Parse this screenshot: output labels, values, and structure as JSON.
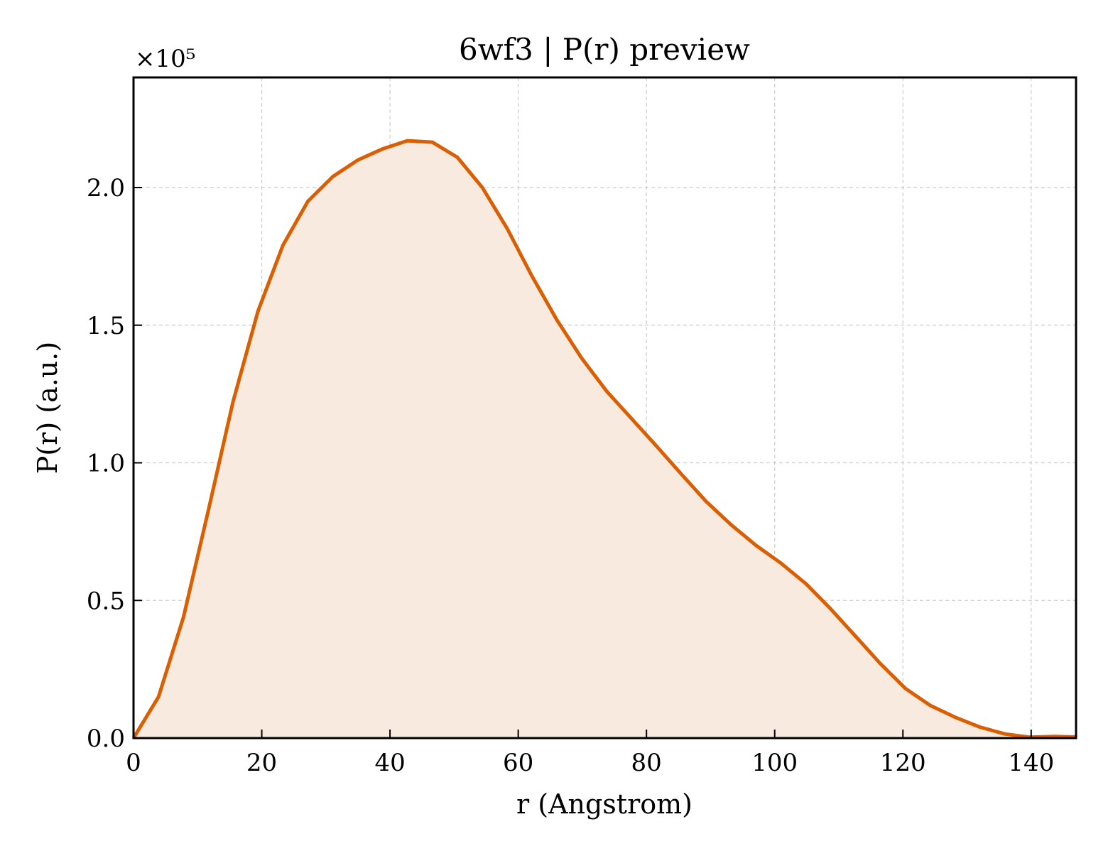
{
  "chart_data": {
    "type": "area",
    "title": "6wf3 | P(r) preview",
    "xlabel": "r (Angstrom)",
    "ylabel": "P(r) (a.u.)",
    "y_scale_multiplier": "×10⁵",
    "xlim": [
      0,
      147
    ],
    "ylim": [
      0,
      2.4
    ],
    "x_ticks": [
      0,
      20,
      40,
      60,
      80,
      100,
      120,
      140
    ],
    "x_tick_labels": [
      "0",
      "20",
      "40",
      "60",
      "80",
      "100",
      "120",
      "140"
    ],
    "y_ticks": [
      0,
      0.5,
      1.0,
      1.5,
      2.0
    ],
    "y_tick_labels": [
      "0.0",
      "0.5",
      "1.0",
      "1.5",
      "2.0"
    ],
    "grid": true,
    "line_color": "#d95f02",
    "fill_color": "#f9eadf",
    "series": [
      {
        "x": [
          0,
          3.9,
          7.8,
          11.7,
          15.5,
          19.4,
          23.3,
          27.2,
          31.1,
          35.0,
          38.8,
          42.7,
          46.6,
          50.5,
          54.4,
          58.3,
          62.1,
          66.0,
          69.9,
          73.8,
          77.7,
          81.6,
          85.4,
          89.3,
          93.2,
          97.1,
          101.0,
          104.9,
          108.7,
          112.6,
          116.5,
          120.4,
          124.3,
          128.2,
          132.0,
          135.9,
          139.8,
          143.7,
          147.0
        ],
        "y": [
          0.0,
          0.15,
          0.44,
          0.83,
          1.22,
          1.55,
          1.79,
          1.95,
          2.04,
          2.1,
          2.14,
          2.17,
          2.165,
          2.11,
          2.0,
          1.85,
          1.68,
          1.52,
          1.38,
          1.26,
          1.16,
          1.06,
          0.96,
          0.86,
          0.775,
          0.7,
          0.635,
          0.56,
          0.47,
          0.37,
          0.27,
          0.18,
          0.118,
          0.075,
          0.04,
          0.015,
          0.003,
          0.006,
          0.004
        ]
      }
    ]
  }
}
